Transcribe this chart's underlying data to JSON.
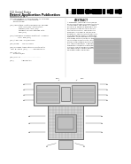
{
  "background_color": "#ffffff",
  "barcode_color": "#000000",
  "diagram_line_color": "#555555",
  "diagram_label_color": "#444444",
  "diagram_bg": "#eeeeee",
  "upper_body_color": "#e2e2e2",
  "lower_body_color": "#d8d8d8",
  "coil_color": "#c8c8c8",
  "hatch_color": "#999999",
  "inner_coil_color": "#b8b8b8"
}
